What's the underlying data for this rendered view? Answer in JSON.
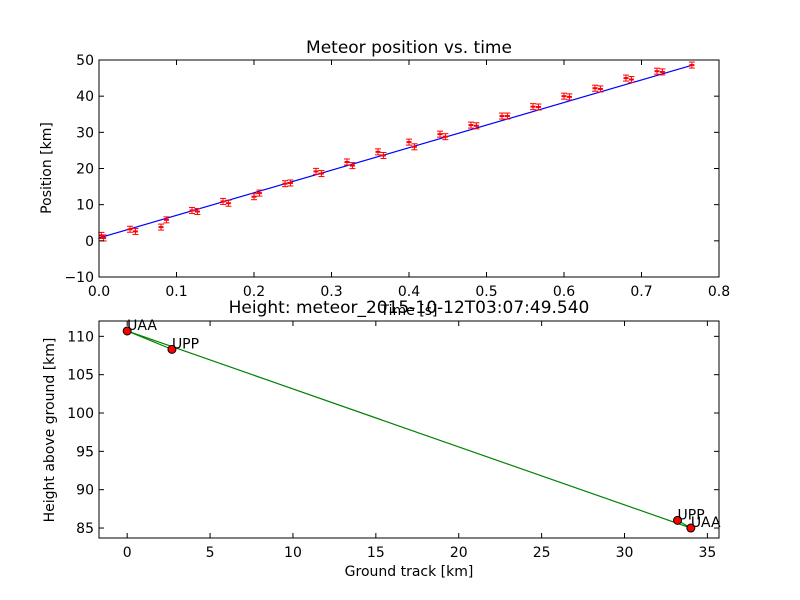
{
  "chart_data": [
    {
      "type": "line",
      "title": "Meteor position vs. time",
      "xlabel": "Time [s]",
      "ylabel": "Position [km]",
      "xlim": [
        0.0,
        0.8
      ],
      "ylim": [
        -10,
        50
      ],
      "xticks": [
        "0.0",
        "0.1",
        "0.2",
        "0.3",
        "0.4",
        "0.5",
        "0.6",
        "0.7",
        "0.8"
      ],
      "yticks": [
        "−10",
        "0",
        "10",
        "20",
        "30",
        "40",
        "50"
      ],
      "grid": false,
      "fit_line": {
        "x": [
          0.0,
          0.766
        ],
        "y": [
          0.8,
          48.6
        ],
        "color": "#0000ff"
      },
      "points": {
        "color": "#ff0000",
        "x": [
          0.003,
          0.006,
          0.04,
          0.047,
          0.08,
          0.087,
          0.12,
          0.127,
          0.16,
          0.167,
          0.2,
          0.207,
          0.24,
          0.247,
          0.28,
          0.287,
          0.32,
          0.327,
          0.36,
          0.367,
          0.4,
          0.407,
          0.44,
          0.447,
          0.48,
          0.487,
          0.52,
          0.527,
          0.56,
          0.567,
          0.6,
          0.607,
          0.64,
          0.647,
          0.68,
          0.687,
          0.72,
          0.727,
          0.765
        ],
        "y": [
          1.5,
          0.8,
          3.2,
          2.6,
          3.8,
          5.8,
          8.4,
          8.1,
          10.9,
          10.4,
          12.2,
          13.2,
          15.8,
          16.0,
          19.2,
          18.6,
          21.8,
          20.8,
          24.6,
          23.6,
          27.3,
          26.0,
          29.5,
          28.8,
          32.0,
          31.8,
          34.5,
          34.5,
          37.1,
          37.0,
          40.0,
          39.8,
          42.2,
          42.0,
          45.0,
          44.6,
          46.9,
          46.7,
          48.6
        ]
      }
    },
    {
      "type": "line",
      "title": "Height: meteor_2015-10-12T03:07:49.540",
      "xlabel": "Ground track [km]",
      "ylabel": "Height above ground [km]",
      "xlim": [
        -1.7,
        35.7
      ],
      "ylim": [
        83.7,
        112.0
      ],
      "xticks": [
        "0",
        "5",
        "10",
        "15",
        "20",
        "25",
        "30",
        "35"
      ],
      "yticks": [
        "85",
        "90",
        "95",
        "100",
        "105",
        "110"
      ],
      "grid": false,
      "series": [
        {
          "x": [
            0.0,
            2.7
          ],
          "y": [
            110.7,
            108.3
          ],
          "color": "#008000"
        },
        {
          "x": [
            33.2,
            34.0
          ],
          "y": [
            86.0,
            85.0
          ],
          "color": "#008000"
        },
        {
          "x": [
            0.0,
            34.0
          ],
          "y": [
            110.7,
            85.0
          ],
          "color": "#008000"
        }
      ],
      "stations": [
        {
          "label": "UAA",
          "x": 0.0,
          "y": 110.7
        },
        {
          "label": "UPP",
          "x": 2.7,
          "y": 108.3
        },
        {
          "label": "UPP",
          "x": 33.2,
          "y": 86.0
        },
        {
          "label": "UAA",
          "x": 34.0,
          "y": 85.0
        }
      ],
      "marker_color": "#ff0000",
      "line_color": "#008000"
    }
  ]
}
